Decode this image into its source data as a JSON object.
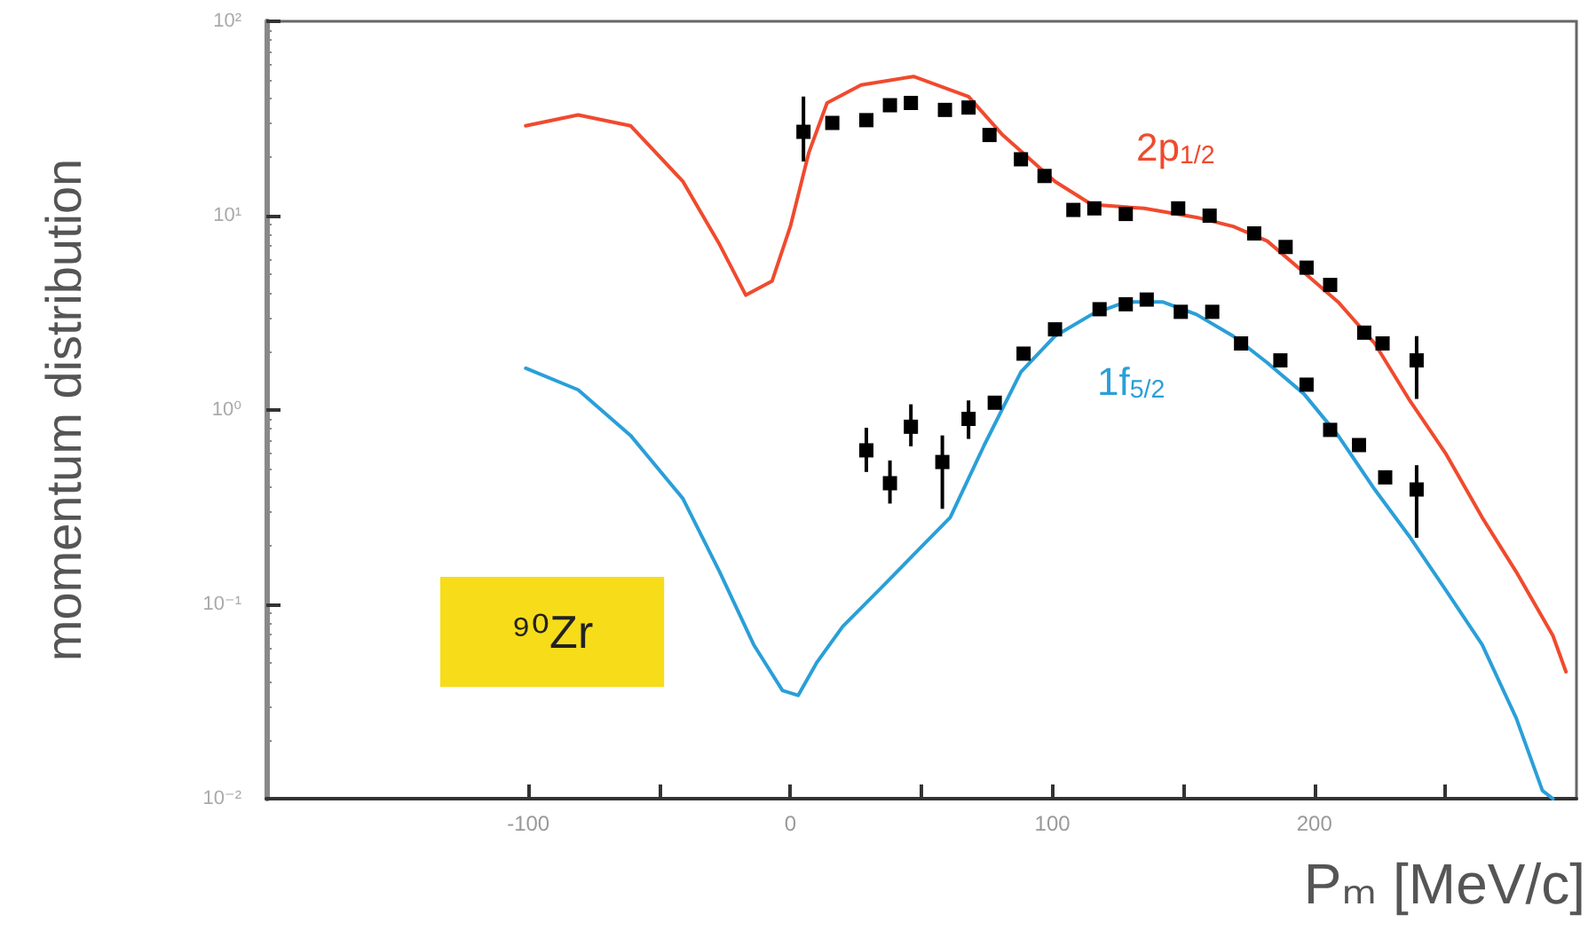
{
  "chart_data": {
    "type": "line",
    "xlabel": "Pₘ [MeV/c]",
    "ylabel": "momentum distribution",
    "xlim": [
      -200,
      300
    ],
    "xticks": [
      {
        "value": -100,
        "label": "-100"
      },
      {
        "value": -50,
        "label": null
      },
      0,
      {
        "value": 50,
        "label": null
      },
      100,
      {
        "value": 150,
        "label": null
      },
      200,
      {
        "value": 250,
        "label": null
      }
    ],
    "ylim": [
      0.01,
      100
    ],
    "yticks": [
      {
        "value": 0.01,
        "label": "10⁻²"
      },
      {
        "value": 0.1,
        "label": "10⁻¹"
      },
      {
        "value": 1,
        "label": "10⁰"
      },
      {
        "value": 10,
        "label": "10¹"
      },
      {
        "value": 100,
        "label": "10²"
      }
    ],
    "log": "y",
    "grid": false,
    "legend": false,
    "series": [
      {
        "name": "2p$_{1/2}$",
        "color": "#f04a2e",
        "marker": "none",
        "line_style": "solid",
        "x": [
          -101,
          -81,
          -61,
          -41,
          -27,
          -17,
          -7,
          0,
          7,
          14,
          27,
          47,
          68,
          81,
          101,
          115,
          135,
          155,
          169,
          182,
          196,
          209,
          223,
          236,
          250,
          264,
          277,
          291,
          296
        ],
        "values": [
          29,
          33,
          29,
          15,
          7.1,
          3.9,
          4.6,
          8.8,
          21,
          38,
          47,
          52,
          41,
          26,
          15,
          11.4,
          10.9,
          9.8,
          8.8,
          7.4,
          5.1,
          3.6,
          2.2,
          1.14,
          0.6,
          0.28,
          0.147,
          0.069,
          0.045
        ]
      },
      {
        "name": "1f$_{5/2}$",
        "color": "#2a9fd8",
        "marker": "none",
        "line_style": "solid",
        "x": [
          -101,
          -81,
          -61,
          -41,
          -27,
          -14,
          -3,
          3,
          10,
          20,
          34,
          47,
          61,
          74,
          88,
          101,
          115,
          128,
          142,
          155,
          169,
          182,
          196,
          209,
          223,
          236,
          250,
          264,
          277,
          287,
          291
        ],
        "values": [
          1.64,
          1.27,
          0.74,
          0.35,
          0.147,
          0.062,
          0.036,
          0.034,
          0.05,
          0.077,
          0.119,
          0.18,
          0.28,
          0.66,
          1.57,
          2.4,
          3.1,
          3.6,
          3.6,
          3.1,
          2.4,
          1.75,
          1.21,
          0.74,
          0.39,
          0.226,
          0.119,
          0.062,
          0.026,
          0.011,
          0.01
        ]
      },
      {
        "type": "scatter",
        "color": "#000000",
        "marker": "square",
        "x": [
          5,
          16,
          29,
          38,
          46,
          59,
          68,
          76,
          88,
          97,
          108,
          116,
          128,
          148,
          160,
          177,
          189,
          197,
          206,
          219,
          226,
          239
        ],
        "values": [
          27,
          30,
          31,
          37,
          38,
          35,
          36,
          26,
          19.5,
          16,
          10.7,
          10.9,
          10.2,
          10.9,
          10,
          8.1,
          6.9,
          5.4,
          4.4,
          2.5,
          2.2,
          1.8
        ],
        "errors": [
          [
            19,
            41
          ],
          null,
          null,
          null,
          null,
          null,
          null,
          null,
          null,
          null,
          null,
          null,
          null,
          null,
          null,
          null,
          null,
          null,
          null,
          null,
          null,
          [
            1.14,
            2.4
          ]
        ]
      },
      {
        "type": "scatter",
        "color": "#000000",
        "marker": "square",
        "x": [
          29,
          38,
          46,
          58,
          68,
          78,
          89,
          101,
          118,
          128,
          136,
          149,
          161,
          172,
          187,
          197,
          206,
          217,
          227,
          239
        ],
        "values": [
          0.62,
          0.42,
          0.82,
          0.54,
          0.9,
          1.09,
          1.95,
          2.6,
          3.3,
          3.5,
          3.7,
          3.2,
          3.2,
          2.2,
          1.8,
          1.35,
          0.79,
          0.66,
          0.45,
          0.39
        ],
        "errors": [
          [
            0.48,
            0.81
          ],
          [
            0.33,
            0.55
          ],
          [
            0.65,
            1.07
          ],
          [
            0.31,
            0.74
          ],
          [
            0.71,
            1.12
          ],
          null,
          null,
          null,
          null,
          null,
          null,
          null,
          null,
          null,
          null,
          null,
          null,
          null,
          null,
          [
            0.22,
            0.52
          ]
        ]
      }
    ],
    "annotations": [
      "⁹⁰Zr"
    ]
  }
}
